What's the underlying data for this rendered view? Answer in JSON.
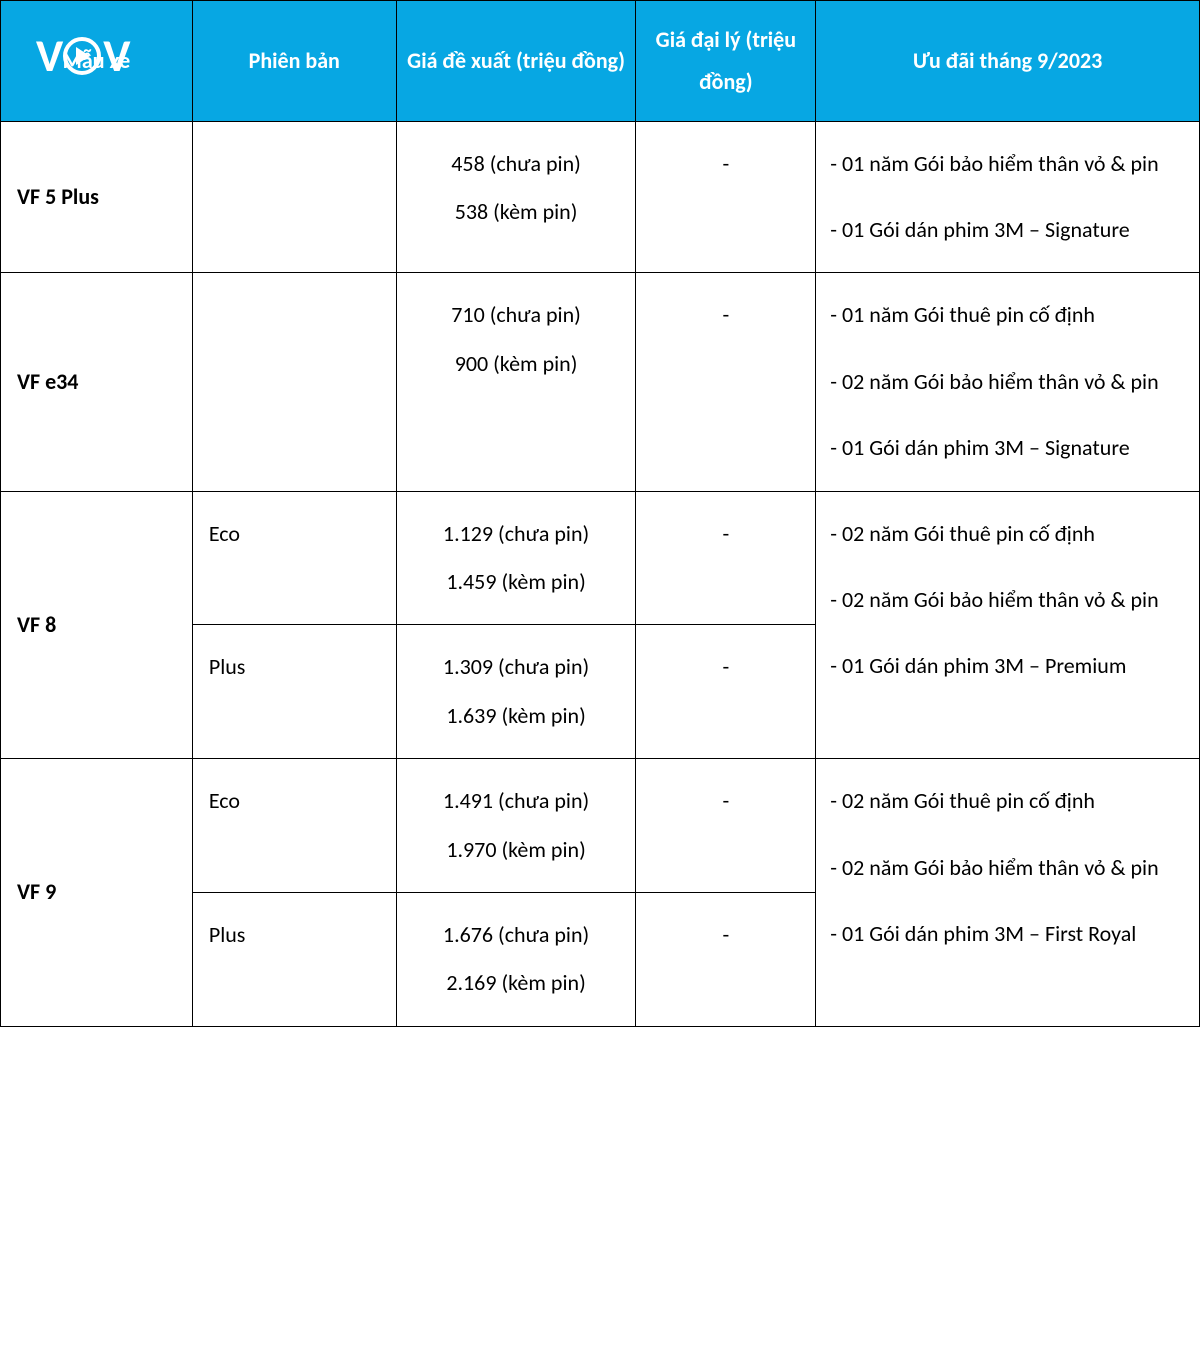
{
  "colors": {
    "header_bg": "#07a7e3",
    "header_fg": "#ffffff",
    "border": "#000000",
    "text": "#000000"
  },
  "headers": {
    "model": "Mẫu xe",
    "version": "Phiên bản",
    "suggested": "Giá đề xuất (triệu đồng)",
    "dealer": "Giá đại lý (triệu đồng)",
    "promo": "Ưu đãi tháng 9/2023"
  },
  "logo_text": {
    "v1": "V",
    "v2": "V"
  },
  "rows": [
    {
      "model": "VF 5 Plus",
      "version": "",
      "price1": "458 (chưa pin)",
      "price2": "538 (kèm pin)",
      "dealer": "-",
      "promo": "- 01 năm Gói bảo hiểm thân vỏ & pin\n- 01 Gói dán phim 3M – Signature"
    },
    {
      "model": "VF e34",
      "version": "",
      "price1": "710 (chưa pin)",
      "price2": "900 (kèm pin)",
      "dealer": "-",
      "promo": "- 01 năm Gói thuê pin cố định\n- 02 năm Gói bảo hiểm thân vỏ & pin\n- 01 Gói dán phim 3M – Signature"
    },
    {
      "model": "VF 8",
      "variants": [
        {
          "version": "Eco",
          "price1": "1.129 (chưa pin)",
          "price2": "1.459 (kèm pin)",
          "dealer": "-"
        },
        {
          "version": "Plus",
          "price1": "1.309 (chưa pin)",
          "price2": "1.639 (kèm pin)",
          "dealer": "-"
        }
      ],
      "promo": "- 02 năm Gói thuê pin cố định\n- 02 năm Gói bảo hiểm thân vỏ & pin\n- 01 Gói dán phim 3M – Premium"
    },
    {
      "model": "VF 9",
      "variants": [
        {
          "version": "Eco",
          "price1": "1.491 (chưa pin)",
          "price2": "1.970 (kèm pin)",
          "dealer": "-"
        },
        {
          "version": "Plus",
          "price1": "1.676 (chưa pin)",
          "price2": "2.169 (kèm pin)",
          "dealer": "-"
        }
      ],
      "promo": "- 02 năm Gói thuê pin cố định\n- 02 năm Gói bảo hiểm thân vỏ & pin\n- 01 Gói dán phim 3M – First Royal"
    }
  ]
}
